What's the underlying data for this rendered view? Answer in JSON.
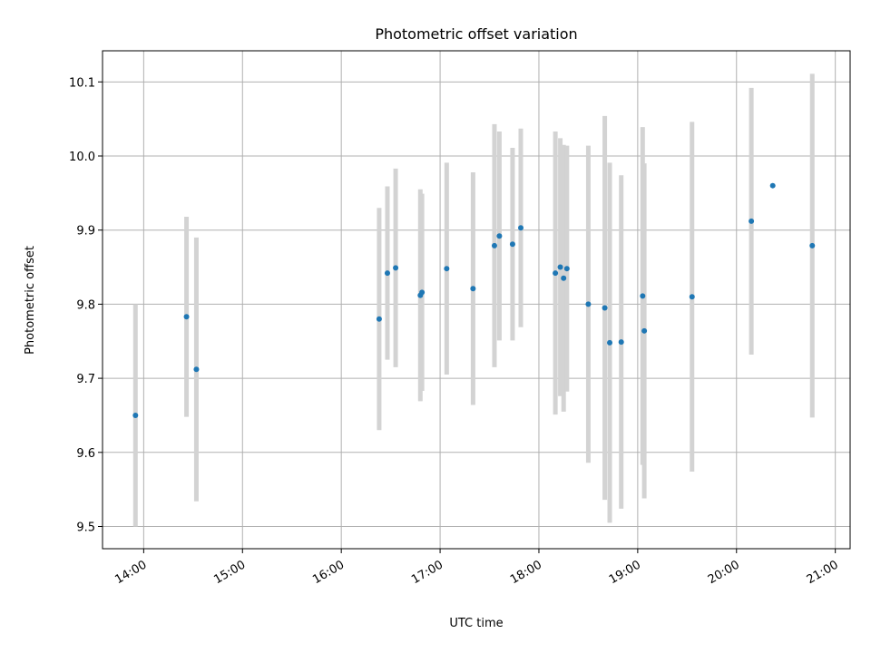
{
  "chart_data": {
    "type": "scatter",
    "title": "Photometric offset variation",
    "xlabel": "UTC time",
    "ylabel": "Photometric offset",
    "xlim": [
      "13:35",
      "21:09"
    ],
    "ylim": [
      9.47,
      10.142
    ],
    "grid": true,
    "xticks": [
      "14:00",
      "15:00",
      "16:00",
      "17:00",
      "18:00",
      "19:00",
      "20:00",
      "21:00"
    ],
    "yticks": [
      9.5,
      9.6,
      9.7,
      9.8,
      9.9,
      10.0,
      10.1
    ],
    "ytick_labels": [
      "9.5",
      "9.6",
      "9.7",
      "9.8",
      "9.9",
      "10.0",
      "10.1"
    ],
    "colors": {
      "marker": "#1f77b4",
      "errorbar": "#d3d3d3",
      "grid": "#b0b0b0"
    },
    "points": [
      {
        "x": "13:55",
        "y": 9.65,
        "yerr": 0.15
      },
      {
        "x": "14:26",
        "y": 9.783,
        "yerr": 0.135
      },
      {
        "x": "14:32",
        "y": 9.712,
        "yerr": 0.178
      },
      {
        "x": "16:23",
        "y": 9.78,
        "yerr": 0.15
      },
      {
        "x": "16:28",
        "y": 9.842,
        "yerr": 0.117
      },
      {
        "x": "16:33",
        "y": 9.849,
        "yerr": 0.134
      },
      {
        "x": "16:48",
        "y": 9.812,
        "yerr": 0.143
      },
      {
        "x": "16:49",
        "y": 9.816,
        "yerr": 0.133
      },
      {
        "x": "17:04",
        "y": 9.848,
        "yerr": 0.143
      },
      {
        "x": "17:20",
        "y": 9.821,
        "yerr": 0.157
      },
      {
        "x": "17:33",
        "y": 9.879,
        "yerr": 0.164
      },
      {
        "x": "17:36",
        "y": 9.892,
        "yerr": 0.141
      },
      {
        "x": "17:44",
        "y": 9.881,
        "yerr": 0.13
      },
      {
        "x": "17:49",
        "y": 9.903,
        "yerr": 0.134
      },
      {
        "x": "18:10",
        "y": 9.842,
        "yerr": 0.191
      },
      {
        "x": "18:13",
        "y": 9.85,
        "yerr": 0.174
      },
      {
        "x": "18:15",
        "y": 9.835,
        "yerr": 0.18
      },
      {
        "x": "18:17",
        "y": 9.848,
        "yerr": 0.166
      },
      {
        "x": "18:30",
        "y": 9.8,
        "yerr": 0.214
      },
      {
        "x": "18:40",
        "y": 9.795,
        "yerr": 0.259
      },
      {
        "x": "18:43",
        "y": 9.748,
        "yerr": 0.243
      },
      {
        "x": "18:50",
        "y": 9.749,
        "yerr": 0.225
      },
      {
        "x": "19:03",
        "y": 9.811,
        "yerr": 0.228
      },
      {
        "x": "19:04",
        "y": 9.764,
        "yerr": 0.226
      },
      {
        "x": "19:33",
        "y": 9.81,
        "yerr": 0.236
      },
      {
        "x": "20:09",
        "y": 9.912,
        "yerr": 0.18
      },
      {
        "x": "20:22",
        "y": 9.96,
        "yerr": 0.0
      },
      {
        "x": "20:46",
        "y": 9.879,
        "yerr": 0.232
      }
    ]
  }
}
